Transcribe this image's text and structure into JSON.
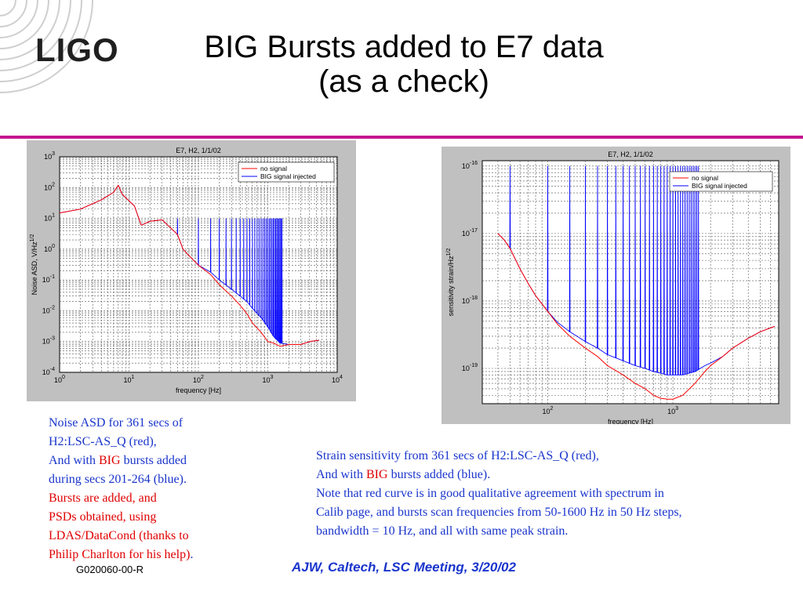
{
  "slide": {
    "title_line1": "BIG Bursts added to E7 data",
    "title_line2": "(as a check)",
    "logo": "LIGO",
    "rule_color": "#c4178f",
    "footer_id": "G020060-00-R",
    "footer_meeting": "AJW, Caltech, LSC Meeting, 3/20/02"
  },
  "captions": {
    "left": {
      "l1": "Noise ASD for 361 secs of",
      "l2": "H2:LSC-AS_Q (red),",
      "l3a": "And with ",
      "l3b": "BIG",
      "l3c": " bursts added",
      "l4": "during secs 201-264 (blue).",
      "l5": "Bursts are added, and",
      "l6": "PSDs obtained, using",
      "l7": "LDAS/DataCond (thanks to",
      "l8a": "Philip Charlton for his help)",
      "l8b": "."
    },
    "right": {
      "l1": "Strain sensitivity from 361 secs of H2:LSC-AS_Q (red),",
      "l2a": "And with ",
      "l2b": "BIG",
      "l2c": " bursts added (blue).",
      "l3": "Note that red curve is in good qualitative agreement with spectrum in",
      "l4": "Calib page, and bursts scan frequencies from 50-1600 Hz in 50 Hz steps,",
      "l5": "bandwidth = 10 Hz, and all with same peak strain."
    }
  },
  "colors": {
    "blue_series": "#0000ff",
    "red_series": "#ff0000",
    "caption_blue": "#1a35cc",
    "caption_red": "#e00000"
  },
  "chart_data": [
    {
      "type": "line",
      "title": "E7, H2, 1/1/02",
      "xlabel": "frequency [Hz]",
      "ylabel": "Noise ASD, V/Hz",
      "ylabel_sup": "1/2",
      "xscale": "log",
      "yscale": "log",
      "xlim": [
        1,
        10000
      ],
      "ylim": [
        0.0001,
        1000
      ],
      "grid": true,
      "legend_position": "top-right",
      "x_ticks": [
        {
          "base": "10",
          "exp": "0"
        },
        {
          "base": "10",
          "exp": "1"
        },
        {
          "base": "10",
          "exp": "2"
        },
        {
          "base": "10",
          "exp": "3"
        },
        {
          "base": "10",
          "exp": "4"
        }
      ],
      "y_ticks": [
        {
          "base": "10",
          "exp": "-4"
        },
        {
          "base": "10",
          "exp": "-3"
        },
        {
          "base": "10",
          "exp": "-2"
        },
        {
          "base": "10",
          "exp": "-1"
        },
        {
          "base": "10",
          "exp": "0"
        },
        {
          "base": "10",
          "exp": "1"
        },
        {
          "base": "10",
          "exp": "2"
        },
        {
          "base": "10",
          "exp": "3"
        }
      ],
      "series": [
        {
          "name": "no signal",
          "color": "#ff0000",
          "x": [
            1,
            2,
            4,
            6,
            7,
            8,
            12,
            15,
            20,
            30,
            50,
            60,
            80,
            100,
            150,
            200,
            300,
            400,
            500,
            600,
            800,
            1000,
            1200,
            1500,
            2000,
            3000,
            4000,
            5500
          ],
          "y": [
            15,
            20,
            40,
            70,
            120,
            60,
            25,
            6,
            8,
            9,
            3,
            1,
            0.5,
            0.3,
            0.15,
            0.07,
            0.03,
            0.015,
            0.008,
            0.004,
            0.002,
            0.001,
            0.0009,
            0.0007,
            0.0008,
            0.0008,
            0.001,
            0.0011
          ]
        },
        {
          "name": "BIG signal injected",
          "color": "#0000ff",
          "x": [
            1,
            2,
            4,
            6,
            7,
            8,
            12,
            15,
            20,
            30,
            50,
            60,
            80,
            100,
            150,
            200,
            300,
            400,
            500,
            600,
            800,
            1000,
            1200,
            1500,
            2000,
            3000,
            4000,
            5500
          ],
          "y": [
            15,
            20,
            40,
            70,
            120,
            60,
            25,
            6,
            8,
            9,
            3,
            1,
            0.5,
            0.3,
            0.18,
            0.1,
            0.05,
            0.03,
            0.02,
            0.012,
            0.006,
            0.003,
            0.0015,
            0.0009,
            0.0008,
            0.0008,
            0.001,
            0.0011
          ],
          "bursts": {
            "start_hz": 50,
            "stop_hz": 1600,
            "step_hz": 50,
            "peak": 10
          }
        }
      ]
    },
    {
      "type": "line",
      "title": "E7, H2, 1/1/02",
      "xlabel": "frequency [Hz]",
      "ylabel": "sensitivity strain/Hz",
      "ylabel_sup": "1/2",
      "xscale": "log",
      "yscale": "log",
      "xlim": [
        30,
        7000
      ],
      "ylim": [
        3e-20,
        1.2e-16
      ],
      "grid": true,
      "legend_position": "top-right",
      "x_ticks": [
        {
          "base": "10",
          "exp": "2",
          "value": 100
        },
        {
          "base": "10",
          "exp": "3",
          "value": 1000
        }
      ],
      "y_ticks": [
        {
          "base": "10",
          "exp": "-19",
          "value": 1e-19
        },
        {
          "base": "10",
          "exp": "-18",
          "value": 1e-18
        },
        {
          "base": "10",
          "exp": "-17",
          "value": 1e-17
        },
        {
          "base": "10",
          "exp": "-16",
          "value": 1e-16
        }
      ],
      "series": [
        {
          "name": "no signal",
          "color": "#ff0000",
          "x": [
            40,
            45,
            50,
            60,
            70,
            80,
            100,
            120,
            150,
            200,
            250,
            300,
            400,
            500,
            600,
            700,
            800,
            900,
            1000,
            1200,
            1500,
            1800,
            2000,
            2500,
            3000,
            4000,
            5000,
            6500
          ],
          "y": [
            1e-17,
            8e-18,
            6e-18,
            3e-18,
            1.8e-18,
            1.2e-18,
            7e-19,
            4.5e-19,
            3e-19,
            2e-19,
            1.5e-19,
            1.1e-19,
            8e-20,
            6e-20,
            5e-20,
            4e-20,
            3.6e-20,
            3.5e-20,
            3.5e-20,
            4e-20,
            6e-20,
            9e-20,
            1.1e-19,
            1.5e-19,
            2e-19,
            2.8e-19,
            3.5e-19,
            4.2e-19
          ]
        },
        {
          "name": "BIG signal injected",
          "color": "#0000ff",
          "x": [
            40,
            45,
            50,
            60,
            70,
            80,
            100,
            120,
            150,
            200,
            250,
            300,
            400,
            500,
            600,
            700,
            800,
            900,
            1000,
            1200,
            1500,
            1800,
            2000,
            2500,
            3000,
            4000,
            5000,
            6500
          ],
          "y": [
            1e-17,
            8e-18,
            6e-18,
            3e-18,
            1.8e-18,
            1.2e-18,
            7e-19,
            4.8e-19,
            3.5e-19,
            2.5e-19,
            2e-19,
            1.6e-19,
            1.3e-19,
            1.1e-19,
            1e-19,
            9e-20,
            8.5e-20,
            8e-20,
            8e-20,
            8e-20,
            9e-20,
            1.1e-19,
            1.2e-19,
            1.5e-19,
            2e-19,
            2.8e-19,
            3.5e-19,
            4.2e-19
          ],
          "bursts": {
            "start_hz": 50,
            "stop_hz": 1600,
            "step_hz": 50,
            "peak": 1e-16
          }
        }
      ]
    }
  ]
}
